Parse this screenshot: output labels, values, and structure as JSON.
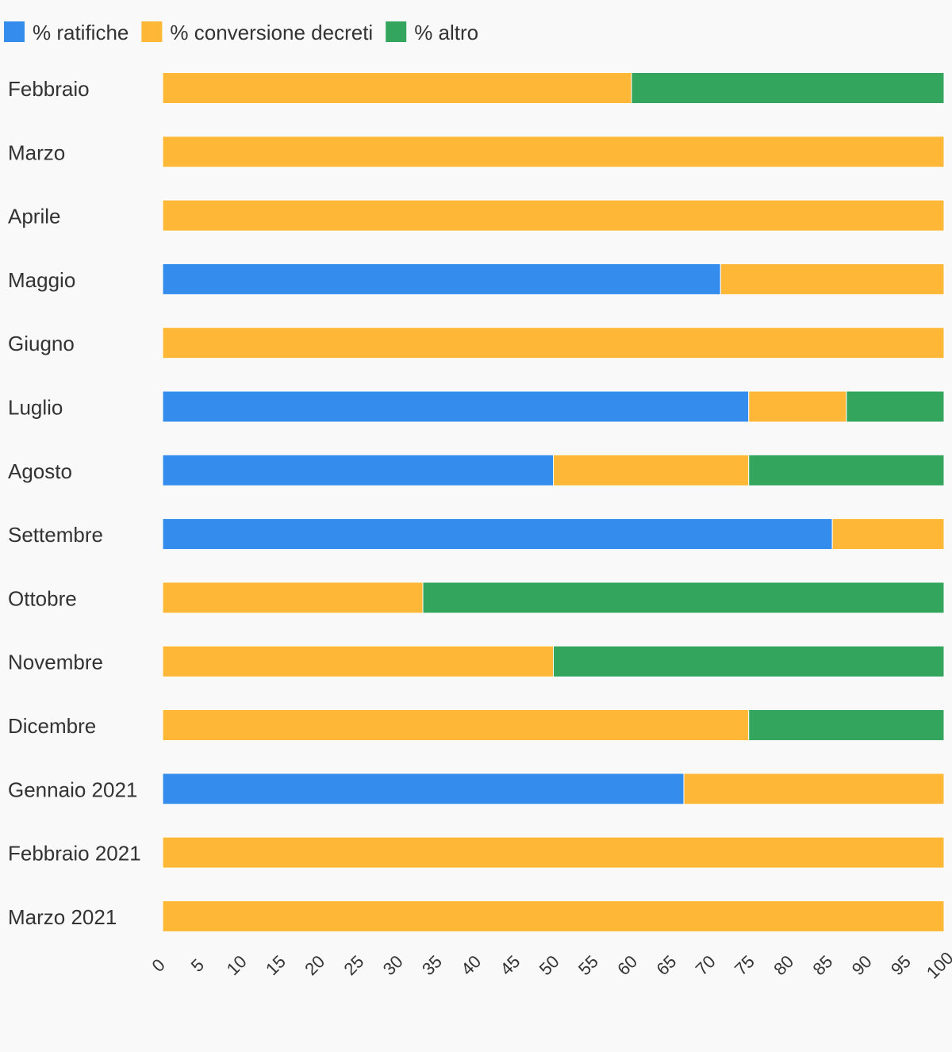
{
  "chart_data": {
    "type": "bar",
    "orientation": "horizontal",
    "stacked": true,
    "legend_position": "top-left",
    "grid": false,
    "categories": [
      "Febbraio",
      "Marzo",
      "Aprile",
      "Maggio",
      "Giugno",
      "Luglio",
      "Agosto",
      "Settembre",
      "Ottobre",
      "Novembre",
      "Dicembre",
      "Gennaio 2021",
      "Febbraio 2021",
      "Marzo 2021"
    ],
    "series": [
      {
        "name": "% ratifiche",
        "color": "#348cec",
        "values": [
          0,
          0,
          0,
          71.4,
          0,
          75,
          50,
          85.7,
          0,
          0,
          0,
          66.7,
          0,
          0
        ]
      },
      {
        "name": "% conversione decreti",
        "color": "#feb737",
        "values": [
          60,
          100,
          100,
          28.6,
          100,
          12.5,
          25,
          14.3,
          33.3,
          50,
          75,
          33.3,
          100,
          100
        ]
      },
      {
        "name": "% altro",
        "color": "#34a55c",
        "values": [
          40,
          0,
          0,
          0,
          0,
          12.5,
          25,
          0,
          66.7,
          50,
          25,
          0,
          0,
          0
        ]
      }
    ],
    "xlim": [
      0,
      100
    ],
    "xticks": [
      0,
      5,
      10,
      15,
      20,
      25,
      30,
      35,
      40,
      45,
      50,
      55,
      60,
      65,
      70,
      75,
      80,
      85,
      90,
      95,
      100
    ]
  }
}
